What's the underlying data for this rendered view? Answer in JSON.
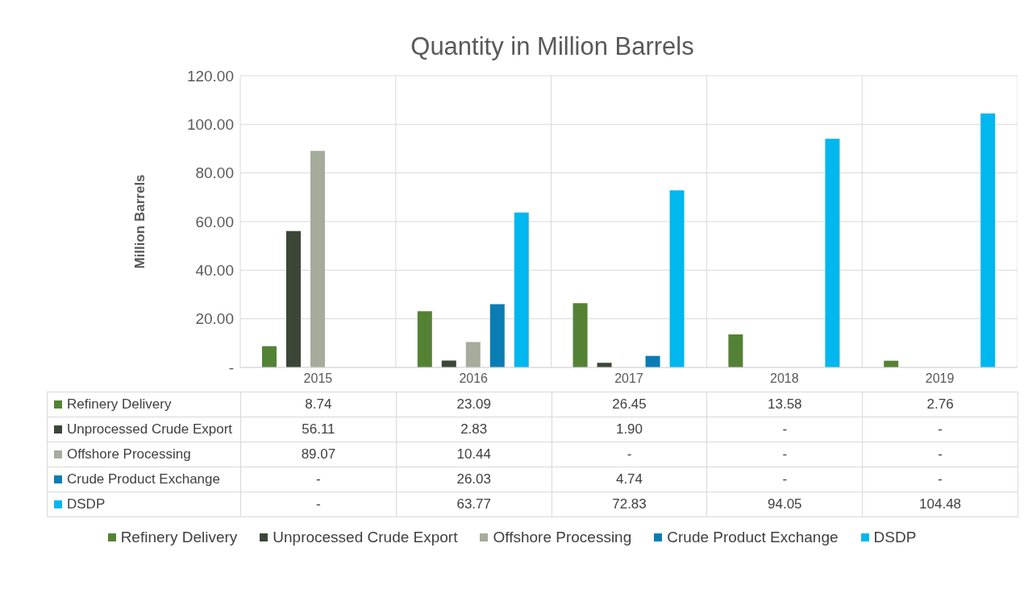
{
  "chart_data": {
    "type": "bar",
    "title": "Quantity in Million Barrels",
    "ylabel": "Million Barrels",
    "categories": [
      "2015",
      "2016",
      "2017",
      "2018",
      "2019"
    ],
    "series": [
      {
        "name": "Refinery Delivery",
        "color": "#548235",
        "values": [
          8.74,
          23.09,
          26.45,
          13.58,
          2.76
        ],
        "value_labels": [
          "8.74",
          "23.09",
          "26.45",
          "13.58",
          "2.76"
        ]
      },
      {
        "name": "Unprocessed Crude Export",
        "color": "#3b4637",
        "values": [
          56.11,
          2.83,
          1.9,
          null,
          null
        ],
        "value_labels": [
          "56.11",
          "2.83",
          "1.90",
          "-",
          "-"
        ]
      },
      {
        "name": "Offshore Processing",
        "color": "#a5ac9b",
        "values": [
          89.07,
          10.44,
          null,
          null,
          null
        ],
        "value_labels": [
          "89.07",
          "10.44",
          "-",
          "-",
          "-"
        ]
      },
      {
        "name": "Crude Product Exchange",
        "color": "#0a7db5",
        "values": [
          null,
          26.03,
          4.74,
          null,
          null
        ],
        "value_labels": [
          "-",
          "26.03",
          "4.74",
          "-",
          "-"
        ]
      },
      {
        "name": "DSDP",
        "color": "#00b7ee",
        "values": [
          null,
          63.77,
          72.83,
          94.05,
          104.48
        ],
        "value_labels": [
          "-",
          "63.77",
          "72.83",
          "94.05",
          "104.48"
        ]
      }
    ],
    "ylim": [
      0,
      120
    ],
    "yticks": [
      {
        "value": 0,
        "label": "-"
      },
      {
        "value": 20,
        "label": "20.00"
      },
      {
        "value": 40,
        "label": "40.00"
      },
      {
        "value": 60,
        "label": "60.00"
      },
      {
        "value": 80,
        "label": "80.00"
      },
      {
        "value": 100,
        "label": "100.00"
      },
      {
        "value": 120,
        "label": "120.00"
      }
    ],
    "grid": true,
    "legend": "bottom"
  }
}
